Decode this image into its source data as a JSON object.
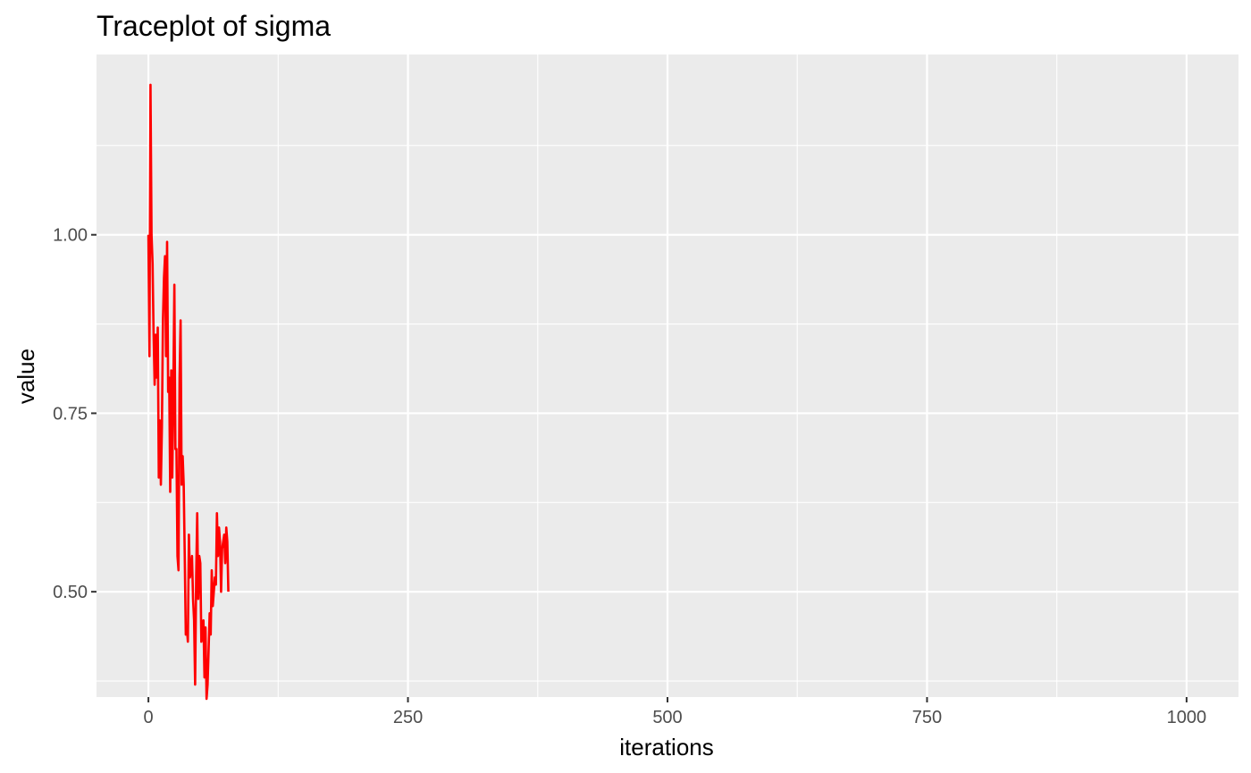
{
  "chart_data": {
    "type": "line",
    "title": "Traceplot of sigma",
    "xlabel": "iterations",
    "ylabel": "value",
    "xlim": [
      -50,
      1050
    ],
    "ylim": [
      0.3525,
      1.2525
    ],
    "x_ticks": [
      0,
      250,
      500,
      750,
      1000
    ],
    "x_tick_labels": [
      "0",
      "250",
      "500",
      "750",
      "1000"
    ],
    "x_minor_ticks": [
      125,
      375,
      625,
      875
    ],
    "y_ticks": [
      0.5,
      0.75,
      1.0
    ],
    "y_tick_labels": [
      "0.50",
      "0.75",
      "1.00"
    ],
    "y_minor_ticks": [
      0.375,
      0.625,
      0.875,
      1.125
    ],
    "grid": true,
    "legend": "none",
    "panel_background": "#ebebeb",
    "series": [
      {
        "color": "#ff0000",
        "x": [
          0,
          1,
          2,
          3,
          4,
          5,
          6,
          7,
          8,
          9,
          10,
          11,
          12,
          13,
          14,
          15,
          16,
          17,
          18,
          19,
          20,
          21,
          22,
          23,
          24,
          25,
          26,
          27,
          28,
          29,
          30,
          31,
          32,
          33,
          34,
          35,
          36,
          37,
          38,
          39,
          40,
          41,
          42,
          43,
          44,
          45,
          46,
          47,
          48,
          49,
          50,
          51,
          52,
          53,
          54,
          55,
          56,
          57,
          58,
          59,
          60,
          61,
          62,
          63,
          64,
          65,
          66,
          67,
          68,
          69,
          70,
          71,
          72,
          73,
          74,
          75,
          76,
          77
        ],
        "y": [
          1.0,
          0.83,
          1.21,
          1.0,
          0.96,
          0.86,
          0.79,
          0.86,
          0.8,
          0.87,
          0.66,
          0.74,
          0.65,
          0.73,
          0.88,
          0.94,
          0.97,
          0.83,
          0.99,
          0.78,
          0.8,
          0.64,
          0.81,
          0.66,
          0.78,
          0.93,
          0.7,
          0.7,
          0.55,
          0.53,
          0.8,
          0.88,
          0.65,
          0.69,
          0.65,
          0.55,
          0.44,
          0.45,
          0.43,
          0.58,
          0.52,
          0.53,
          0.55,
          0.49,
          0.46,
          0.37,
          0.52,
          0.61,
          0.49,
          0.55,
          0.54,
          0.43,
          0.44,
          0.46,
          0.38,
          0.45,
          0.35,
          0.37,
          0.42,
          0.47,
          0.44,
          0.53,
          0.48,
          0.5,
          0.52,
          0.51,
          0.61,
          0.55,
          0.59,
          0.57,
          0.5,
          0.56,
          0.57,
          0.58,
          0.54,
          0.59,
          0.57,
          0.5
        ]
      }
    ]
  }
}
